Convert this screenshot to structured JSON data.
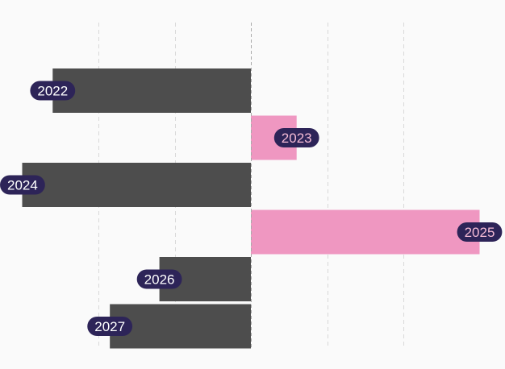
{
  "colors": {
    "background": "#fafafa",
    "negative_bar": "#4d4d4d",
    "positive_bar": "#ef97c1",
    "label_pill": "#2d2458",
    "label_text_on_negative": "#ffffff",
    "label_text_on_positive": "#f6bcd6"
  },
  "chart_data": {
    "type": "bar",
    "orientation": "horizontal",
    "title": "",
    "xlabel": "",
    "ylabel": "",
    "grid": true,
    "legend": "none",
    "xlim": [
      -3,
      3
    ],
    "gridlines": [
      -2,
      -1,
      0,
      1,
      2
    ],
    "categories": [
      "2022",
      "2023",
      "2024",
      "2025",
      "2026",
      "2027"
    ],
    "values": [
      -2.6,
      0.6,
      -3.0,
      3.0,
      -1.2,
      -1.85
    ]
  }
}
